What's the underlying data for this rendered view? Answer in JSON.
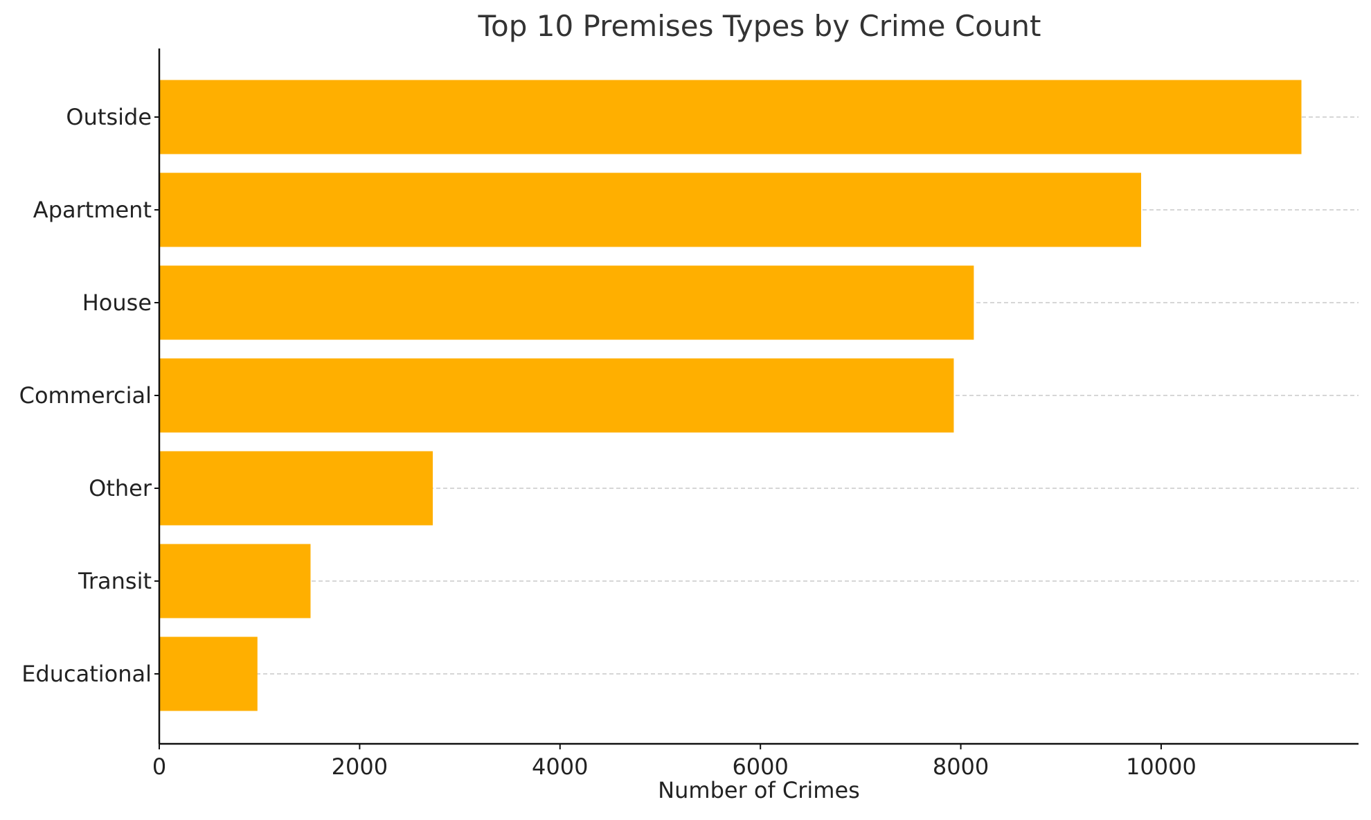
{
  "chart_data": {
    "type": "bar",
    "orientation": "horizontal",
    "title": "Top 10 Premises Types by Crime Count",
    "xlabel": "Number of Crimes",
    "ylabel": "",
    "categories": [
      "Outside",
      "Apartment",
      "House",
      "Commercial",
      "Other",
      "Transit",
      "Educational"
    ],
    "values": [
      11400,
      9800,
      8130,
      7930,
      2730,
      1510,
      980
    ],
    "xlim": [
      0,
      11970
    ],
    "xticks": [
      0,
      2000,
      4000,
      6000,
      8000,
      10000
    ],
    "grid": "horizontal dashed",
    "bar_color": "#FFAF00"
  }
}
